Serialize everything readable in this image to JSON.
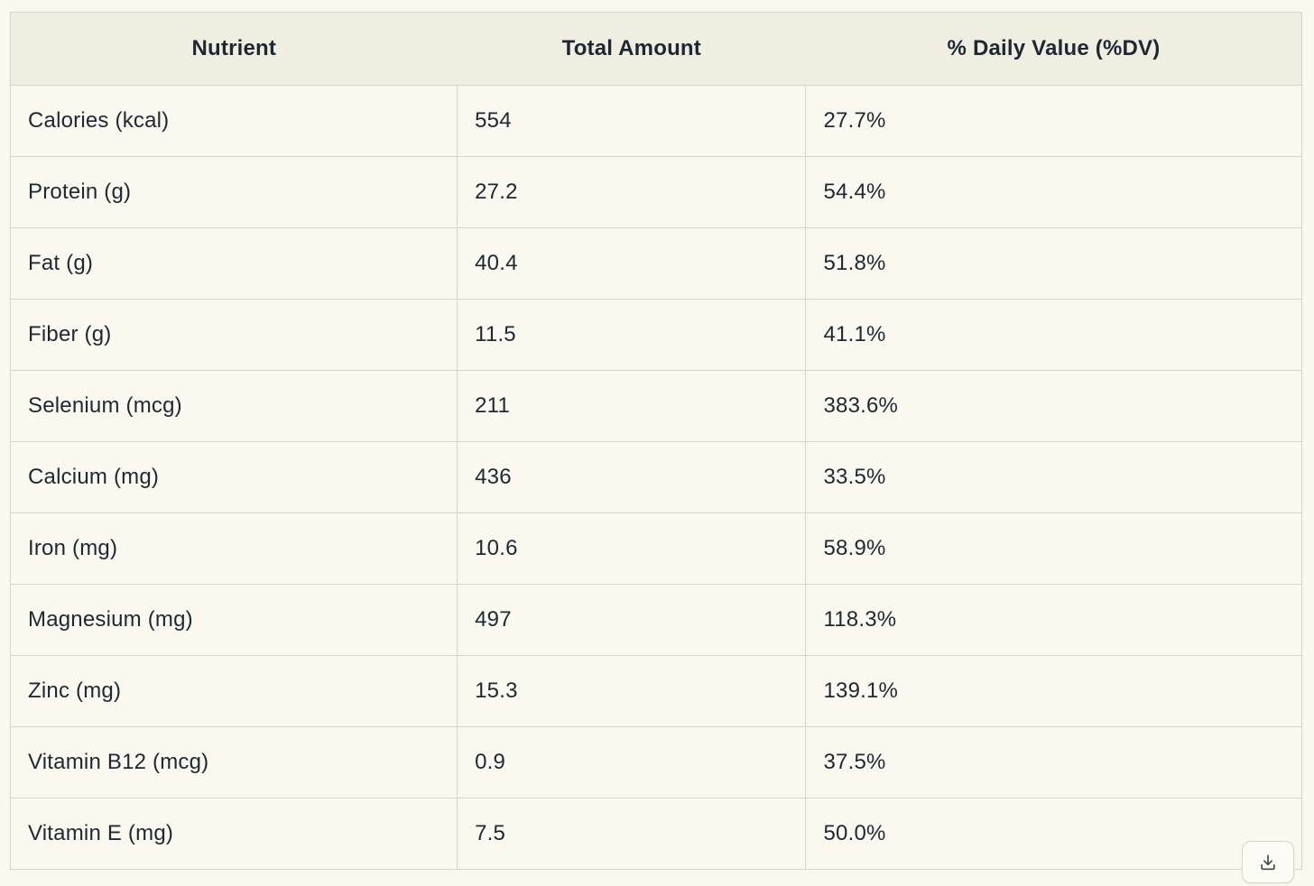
{
  "chart_data": {
    "type": "table",
    "title": "",
    "columns": [
      "Nutrient",
      "Total Amount",
      "% Daily Value (%DV)"
    ],
    "rows": [
      [
        "Calories (kcal)",
        "554",
        "27.7%"
      ],
      [
        "Protein (g)",
        "27.2",
        "54.4%"
      ],
      [
        "Fat (g)",
        "40.4",
        "51.8%"
      ],
      [
        "Fiber (g)",
        "11.5",
        "41.1%"
      ],
      [
        "Selenium (mcg)",
        "211",
        "383.6%"
      ],
      [
        "Calcium (mg)",
        "436",
        "33.5%"
      ],
      [
        "Iron (mg)",
        "10.6",
        "58.9%"
      ],
      [
        "Magnesium (mg)",
        "497",
        "118.3%"
      ],
      [
        "Zinc (mg)",
        "15.3",
        "139.1%"
      ],
      [
        "Vitamin B12 (mcg)",
        "0.9",
        "37.5%"
      ],
      [
        "Vitamin E (mg)",
        "7.5",
        "50.0%"
      ]
    ]
  },
  "controls": {
    "download_button_icon": "download-icon"
  },
  "colors": {
    "page_background": "#FAF8EF",
    "header_background": "#F0EDE1",
    "cell_border": "#D8D5C8",
    "text": "#1D2834",
    "button_background": "#FCFBF5",
    "icon": "#3C4653"
  }
}
